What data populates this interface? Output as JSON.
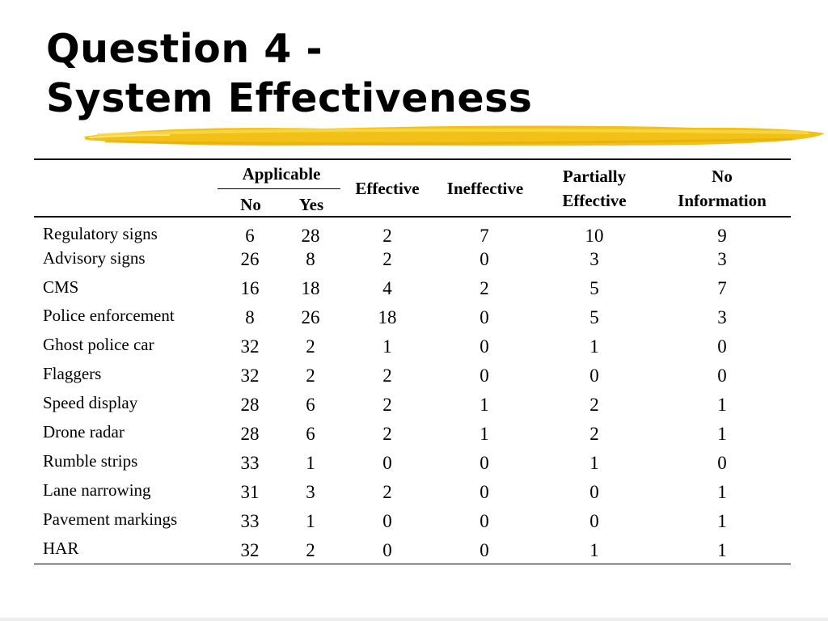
{
  "slide": {
    "title_line1": "Question 4 -",
    "title_line2": "System Effectiveness",
    "accent_color": "#f2c118"
  },
  "table": {
    "headers": {
      "applicable": "Applicable",
      "no": "No",
      "yes": "Yes",
      "effective": "Effective",
      "ineffective": "Ineffective",
      "partially_line1": "Partially",
      "partially_line2": "Effective",
      "noinfo_line1": "No",
      "noinfo_line2": "Information"
    },
    "rows": [
      {
        "label": "Regulatory signs",
        "no": "6",
        "yes": "28",
        "effective": "2",
        "ineffective": "7",
        "partially": "10",
        "noinfo": "9"
      },
      {
        "label": "Advisory signs",
        "no": "26",
        "yes": "8",
        "effective": "2",
        "ineffective": "0",
        "partially": "3",
        "noinfo": "3"
      },
      {
        "label": "CMS",
        "no": "16",
        "yes": "18",
        "effective": "4",
        "ineffective": "2",
        "partially": "5",
        "noinfo": "7"
      },
      {
        "label": "Police enforcement",
        "no": "8",
        "yes": "26",
        "effective": "18",
        "ineffective": "0",
        "partially": "5",
        "noinfo": "3"
      },
      {
        "label": "Ghost police car",
        "no": "32",
        "yes": "2",
        "effective": "1",
        "ineffective": "0",
        "partially": "1",
        "noinfo": "0"
      },
      {
        "label": "Flaggers",
        "no": "32",
        "yes": "2",
        "effective": "2",
        "ineffective": "0",
        "partially": "0",
        "noinfo": "0"
      },
      {
        "label": "Speed display",
        "no": "28",
        "yes": "6",
        "effective": "2",
        "ineffective": "1",
        "partially": "2",
        "noinfo": "1"
      },
      {
        "label": "Drone radar",
        "no": "28",
        "yes": "6",
        "effective": "2",
        "ineffective": "1",
        "partially": "2",
        "noinfo": "1"
      },
      {
        "label": "Rumble strips",
        "no": "33",
        "yes": "1",
        "effective": "0",
        "ineffective": "0",
        "partially": "1",
        "noinfo": "0"
      },
      {
        "label": "Lane narrowing",
        "no": "31",
        "yes": "3",
        "effective": "2",
        "ineffective": "0",
        "partially": "0",
        "noinfo": "1"
      },
      {
        "label": "Pavement markings",
        "no": "33",
        "yes": "1",
        "effective": "0",
        "ineffective": "0",
        "partially": "0",
        "noinfo": "1"
      },
      {
        "label": "HAR",
        "no": "32",
        "yes": "2",
        "effective": "0",
        "ineffective": "0",
        "partially": "1",
        "noinfo": "1"
      }
    ]
  }
}
